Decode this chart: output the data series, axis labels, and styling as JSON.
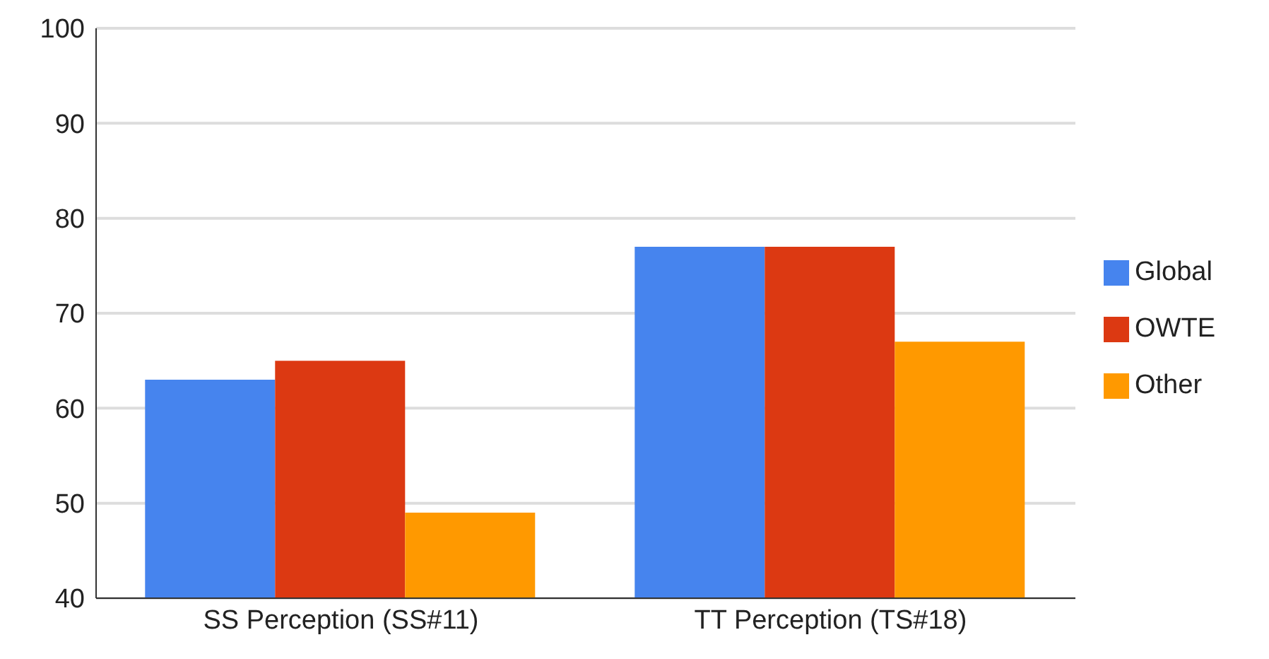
{
  "chart_data": {
    "type": "bar",
    "categories": [
      "SS Perception (SS#11)",
      "TT Perception (TS#18)"
    ],
    "series": [
      {
        "name": "Global",
        "color": "#4684ee",
        "values": [
          63,
          77
        ]
      },
      {
        "name": "OWTE",
        "color": "#dc3912",
        "values": [
          65,
          77
        ]
      },
      {
        "name": "Other",
        "color": "#ff9900",
        "values": [
          49,
          67
        ]
      }
    ],
    "ylim": [
      40,
      100
    ],
    "yticks": [
      40,
      50,
      60,
      70,
      80,
      90,
      100
    ],
    "grid": "y",
    "legend": "right"
  }
}
